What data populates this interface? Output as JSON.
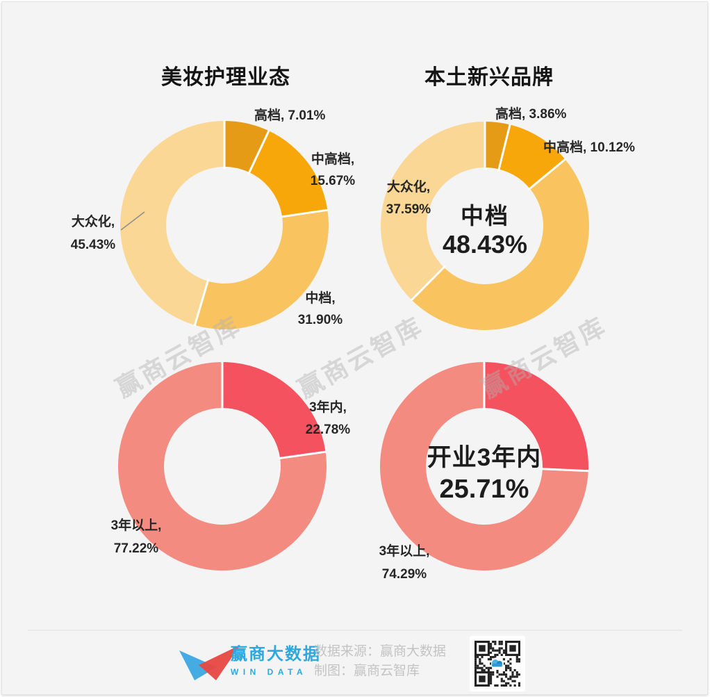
{
  "titles": {
    "left": "美妆护理业态",
    "right": "本土新兴品牌"
  },
  "watermark": {
    "text": "赢商云智库"
  },
  "chart_data": [
    {
      "id": "grade-beauty",
      "type": "pie",
      "donut": true,
      "group": "美妆护理业态",
      "position": "top-left",
      "categories": [
        "高档",
        "中高档",
        "中档",
        "大众化"
      ],
      "values": [
        7.01,
        15.67,
        31.9,
        45.43
      ],
      "unit": "%",
      "colors": [
        "#E59B16",
        "#F8A70B",
        "#F9C45F",
        "#FAD795"
      ]
    },
    {
      "id": "grade-local-new",
      "type": "pie",
      "donut": true,
      "group": "本土新兴品牌",
      "position": "top-right",
      "categories": [
        "高档",
        "中高档",
        "中档",
        "大众化"
      ],
      "values": [
        3.86,
        10.12,
        48.43,
        37.59
      ],
      "unit": "%",
      "colors": [
        "#E59B16",
        "#F8A70B",
        "#F9C45F",
        "#FAD795"
      ],
      "center_label": {
        "line1": "中档",
        "line2": "48.43%"
      }
    },
    {
      "id": "age-beauty",
      "type": "pie",
      "donut": true,
      "group": "美妆护理业态",
      "position": "bottom-left",
      "categories": [
        "3年内",
        "3年以上"
      ],
      "values": [
        22.78,
        77.22
      ],
      "unit": "%",
      "colors": [
        "#F5525F",
        "#F48B80"
      ]
    },
    {
      "id": "age-local-new",
      "type": "pie",
      "donut": true,
      "group": "本土新兴品牌",
      "position": "bottom-right",
      "categories": [
        "开业3年内",
        "3年以上"
      ],
      "values": [
        25.71,
        74.29
      ],
      "unit": "%",
      "colors": [
        "#F5525F",
        "#F48B80"
      ],
      "center_label": {
        "line1": "开业3年内",
        "line2": "25.71%"
      }
    }
  ],
  "annotations": {
    "c1": {
      "gao": "高档, 7.01%",
      "zhonggao1": "中高档,",
      "zhonggao2": "15.67%",
      "zhong1": "中档,",
      "zhong2": "31.90%",
      "dazhong1": "大众化,",
      "dazhong2": "45.43%"
    },
    "c2": {
      "gao": "高档, 3.86%",
      "zhonggao": "中高档, 10.12%",
      "dazhong1": "大众化,",
      "dazhong2": "37.59%",
      "center1": "中档",
      "center2": "48.43%"
    },
    "c3": {
      "in3_1": "3年内,",
      "in3_2": "22.78%",
      "over3_1": "3年以上,",
      "over3_2": "77.22%"
    },
    "c4": {
      "center1": "开业3年内",
      "center2": "25.71%",
      "over3_1": "3年以上,",
      "over3_2": "74.29%"
    }
  },
  "footer": {
    "brand_cn": "赢商大数据",
    "brand_en": "WIN DATA",
    "source": "数据来源：赢商大数据",
    "credit": "制图：赢商云智库"
  }
}
